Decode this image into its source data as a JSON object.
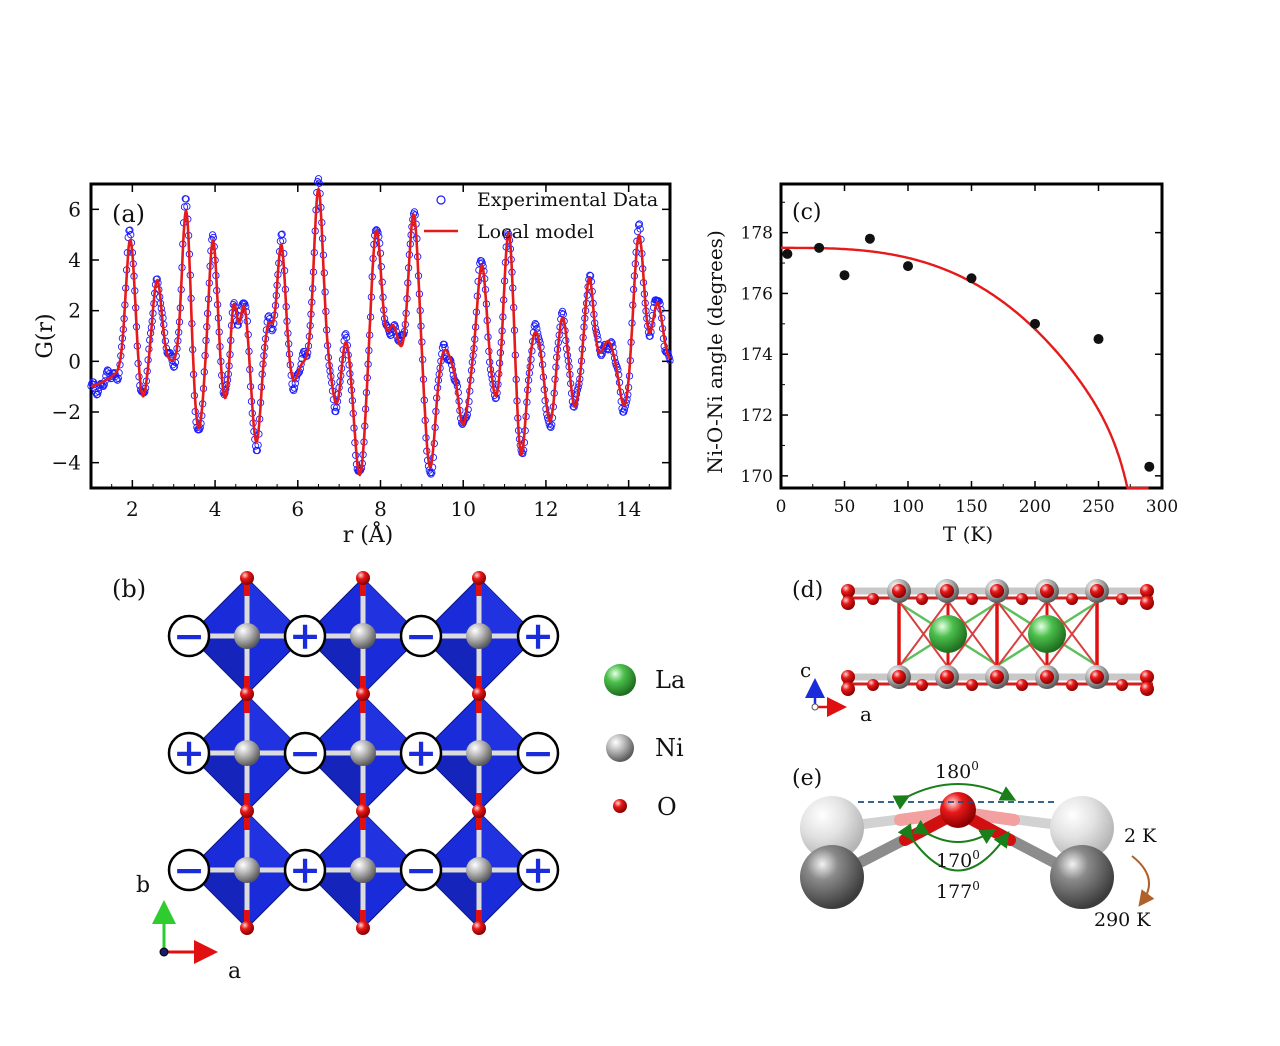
{
  "colors": {
    "exp": "#1a1aff",
    "model": "#e61a1a",
    "octa": "#1a2bd9",
    "ni": "#9a9a9a",
    "o": "#e01010",
    "la": "#3aa83a",
    "arrow_green": "#1a7f1a",
    "arrow_brown": "#b0602a",
    "dash": "#1f4f7a"
  },
  "panel_a": {
    "tag": "(a)",
    "legend_exp": "Experimental Data",
    "legend_model": "Local model",
    "chart_data": {
      "type": "line",
      "xlabel": "r (Å)",
      "ylabel": "G(r)",
      "xlim": [
        1,
        15
      ],
      "ylim": [
        -5,
        7
      ],
      "xticks": [
        2,
        4,
        6,
        8,
        10,
        12,
        14
      ],
      "yticks": [
        -4,
        -2,
        0,
        2,
        4,
        6
      ],
      "peaks": [
        [
          1.95,
          4.8,
          0.11
        ],
        [
          2.25,
          -1.5,
          0.1
        ],
        [
          2.6,
          3.2,
          0.11
        ],
        [
          2.95,
          0.0,
          0.1
        ],
        [
          3.3,
          6.0,
          0.1
        ],
        [
          3.6,
          -2.7,
          0.11
        ],
        [
          3.95,
          4.8,
          0.1
        ],
        [
          4.25,
          -1.6,
          0.1
        ],
        [
          4.45,
          2.4,
          0.08
        ],
        [
          4.7,
          2.2,
          0.09
        ],
        [
          5.0,
          -3.2,
          0.1
        ],
        [
          5.3,
          1.5,
          0.1
        ],
        [
          5.6,
          4.6,
          0.1
        ],
        [
          5.9,
          -0.8,
          0.1
        ],
        [
          6.5,
          6.8,
          0.11
        ],
        [
          6.95,
          -1.8,
          0.11
        ],
        [
          7.15,
          1.2,
          0.1
        ],
        [
          7.5,
          -4.5,
          0.13
        ],
        [
          7.9,
          5.2,
          0.12
        ],
        [
          8.3,
          1.4,
          0.12
        ],
        [
          8.8,
          5.8,
          0.12
        ],
        [
          9.2,
          -4.2,
          0.12
        ],
        [
          9.55,
          0.5,
          0.1
        ],
        [
          10.0,
          -2.5,
          0.12
        ],
        [
          10.45,
          3.8,
          0.11
        ],
        [
          10.8,
          -1.5,
          0.11
        ],
        [
          11.1,
          5.2,
          0.11
        ],
        [
          11.4,
          -3.8,
          0.11
        ],
        [
          11.75,
          1.2,
          0.11
        ],
        [
          12.1,
          -2.4,
          0.11
        ],
        [
          12.4,
          1.8,
          0.1
        ],
        [
          12.7,
          -1.8,
          0.1
        ],
        [
          13.05,
          3.3,
          0.1
        ],
        [
          13.5,
          0.8,
          0.12
        ],
        [
          13.9,
          -1.8,
          0.12
        ],
        [
          14.25,
          5.0,
          0.12
        ],
        [
          14.7,
          2.3,
          0.12
        ]
      ],
      "baseline_start": -1.0
    }
  },
  "panel_b": {
    "tag": "(b)",
    "legend": [
      {
        "name": "La",
        "kind": "la"
      },
      {
        "name": "Ni",
        "kind": "ni"
      },
      {
        "name": "O",
        "kind": "o"
      }
    ],
    "signs": [
      [
        "−",
        "+",
        "−",
        "+"
      ],
      [
        "+",
        "−",
        "+",
        "−"
      ],
      [
        "−",
        "+",
        "−",
        "+"
      ]
    ],
    "axis_b": "b",
    "axis_a": "a"
  },
  "panel_c": {
    "tag": "(c)",
    "chart_data": {
      "type": "scatter",
      "xlabel": "T (K)",
      "ylabel": "Ni-O-Ni angle (degrees)",
      "xlim": [
        0,
        300
      ],
      "ylim": [
        169.6,
        179.6
      ],
      "xticks": [
        0,
        50,
        100,
        150,
        200,
        250,
        300
      ],
      "yticks": [
        170,
        172,
        174,
        176,
        178
      ],
      "points": [
        [
          5,
          177.3
        ],
        [
          30,
          177.5
        ],
        [
          50,
          176.6
        ],
        [
          70,
          177.8
        ],
        [
          100,
          176.9
        ],
        [
          150,
          176.5
        ],
        [
          200,
          175.0
        ],
        [
          250,
          174.5
        ],
        [
          290,
          170.3
        ]
      ],
      "fit": {
        "a0": 177.5,
        "b": 8.2,
        "tc": 290,
        "expo": 0.33
      }
    }
  },
  "panel_d": {
    "tag": "(d)",
    "axis_c": "c",
    "axis_a": "a"
  },
  "panel_e": {
    "tag": "(e)",
    "angle_top": "180",
    "angle_mid": "170",
    "angle_bot": "177",
    "deg": "0",
    "temp_low": "2 K",
    "temp_high": "290 K"
  }
}
